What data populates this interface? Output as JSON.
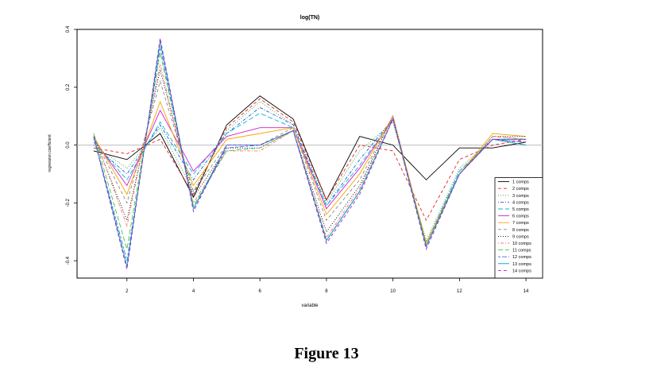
{
  "figure_caption": "Figure 13",
  "chart_data": {
    "type": "line",
    "title": "log(TN)",
    "xlabel": "variable",
    "ylabel": "regression coefficient",
    "xlim": [
      0.5,
      14.5
    ],
    "ylim": [
      -0.46,
      0.4
    ],
    "x_ticks": [
      2,
      4,
      6,
      8,
      10,
      12,
      14
    ],
    "y_ticks": [
      -0.4,
      -0.2,
      0.0,
      0.2,
      0.4
    ],
    "y_tick_labels": [
      "-0.4",
      "-0.2",
      "0.0",
      "0.2",
      "0.4"
    ],
    "x_tick_labels": [
      "2",
      "4",
      "6",
      "8",
      "10",
      "12",
      "14"
    ],
    "reference_line": 0,
    "legend_position": "bottom-right",
    "x": [
      1,
      2,
      3,
      4,
      5,
      6,
      7,
      8,
      9,
      10,
      11,
      12,
      13,
      14
    ],
    "series": [
      {
        "name": "1 comps",
        "color": "#000000",
        "dash": "solid",
        "values": [
          -0.02,
          -0.05,
          0.04,
          -0.18,
          0.07,
          0.17,
          0.09,
          -0.19,
          0.03,
          0.0,
          -0.12,
          -0.01,
          -0.01,
          0.01
        ]
      },
      {
        "name": "2 comps",
        "color": "#e8232a",
        "dash": "dashed",
        "values": [
          -0.01,
          -0.03,
          0.02,
          -0.17,
          0.06,
          0.16,
          0.08,
          -0.19,
          0.0,
          -0.02,
          -0.26,
          -0.05,
          0.0,
          0.02
        ]
      },
      {
        "name": "3 comps",
        "color": "#2ca02c",
        "dash": "dotted",
        "values": [
          0.0,
          -0.08,
          0.06,
          -0.16,
          0.05,
          0.15,
          0.07,
          -0.2,
          -0.02,
          0.08,
          -0.33,
          -0.08,
          0.02,
          0.02
        ]
      },
      {
        "name": "4 comps",
        "color": "#1f5fd6",
        "dash": "dotdash",
        "values": [
          0.0,
          -0.1,
          0.07,
          -0.12,
          0.04,
          0.13,
          0.07,
          -0.21,
          -0.05,
          0.09,
          -0.34,
          -0.09,
          0.02,
          0.01
        ]
      },
      {
        "name": "5 comps",
        "color": "#00b8d4",
        "dash": "longdash",
        "values": [
          0.01,
          -0.12,
          0.08,
          -0.1,
          0.04,
          0.11,
          0.06,
          -0.21,
          -0.07,
          0.09,
          -0.34,
          -0.09,
          0.02,
          0.01
        ]
      },
      {
        "name": "6 comps",
        "color": "#d11ed1",
        "dash": "solid",
        "values": [
          0.02,
          -0.14,
          0.12,
          -0.09,
          0.03,
          0.06,
          0.06,
          -0.22,
          -0.08,
          0.09,
          -0.34,
          -0.1,
          0.02,
          0.02
        ]
      },
      {
        "name": "7 comps",
        "color": "#f5a300",
        "dash": "solid",
        "values": [
          0.03,
          -0.17,
          0.15,
          -0.14,
          0.02,
          0.04,
          0.06,
          -0.24,
          -0.1,
          0.1,
          -0.34,
          -0.1,
          0.04,
          0.03
        ]
      },
      {
        "name": "8 comps",
        "color": "#888888",
        "dash": "dashed",
        "values": [
          0.03,
          -0.2,
          0.22,
          -0.16,
          0.0,
          0.0,
          0.06,
          -0.26,
          -0.12,
          0.1,
          -0.35,
          -0.1,
          0.03,
          0.02
        ]
      },
      {
        "name": "9 comps",
        "color": "#000000",
        "dash": "dotted",
        "values": [
          0.03,
          -0.26,
          0.26,
          -0.18,
          -0.01,
          -0.01,
          0.05,
          -0.3,
          -0.14,
          0.1,
          -0.35,
          -0.1,
          0.03,
          0.03
        ]
      },
      {
        "name": "10 comps",
        "color": "#ff6f6f",
        "dash": "dotdash",
        "values": [
          0.04,
          -0.28,
          0.28,
          -0.2,
          -0.02,
          -0.02,
          0.05,
          -0.32,
          -0.15,
          0.1,
          -0.35,
          -0.1,
          0.03,
          0.02
        ]
      },
      {
        "name": "11 comps",
        "color": "#44c544",
        "dash": "longdash",
        "values": [
          0.04,
          -0.36,
          0.32,
          -0.21,
          -0.02,
          -0.01,
          0.05,
          -0.33,
          -0.16,
          0.09,
          -0.35,
          -0.1,
          0.02,
          0.02
        ]
      },
      {
        "name": "12 comps",
        "color": "#3b6fe0",
        "dash": "twodash",
        "values": [
          0.03,
          -0.4,
          0.34,
          -0.22,
          -0.01,
          0.0,
          0.05,
          -0.33,
          -0.16,
          0.09,
          -0.35,
          -0.1,
          0.02,
          0.02
        ]
      },
      {
        "name": "13 comps",
        "color": "#00a0b0",
        "dash": "solid",
        "values": [
          0.03,
          -0.42,
          0.36,
          -0.22,
          0.0,
          0.0,
          0.05,
          -0.33,
          -0.16,
          0.09,
          -0.35,
          -0.1,
          0.02,
          0.0
        ]
      },
      {
        "name": "14 comps",
        "color": "#b01ad0",
        "dash": "dashed",
        "values": [
          0.03,
          -0.43,
          0.37,
          -0.23,
          0.0,
          0.0,
          0.05,
          -0.34,
          -0.17,
          0.09,
          -0.36,
          -0.1,
          0.02,
          0.01
        ]
      }
    ]
  }
}
